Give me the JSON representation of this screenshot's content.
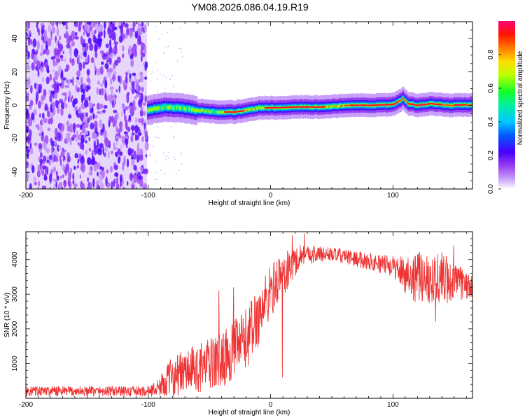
{
  "title": "YM08.2026.086.04.19.R19",
  "chart_data": [
    {
      "type": "heatmap",
      "xlabel": "Height of straight line (km)",
      "ylabel": "Frequency (Hz)",
      "xlim": [
        -200,
        165
      ],
      "ylim": [
        -50,
        50
      ],
      "x_ticks": [
        -200,
        -100,
        0,
        100
      ],
      "y_ticks": [
        -40,
        -20,
        0,
        20,
        40
      ],
      "noise_region_x": [
        -200,
        -101
      ],
      "signal_ridge": [
        {
          "x": -101,
          "f": -3
        },
        {
          "x": -95,
          "f": -2
        },
        {
          "x": -85,
          "f": -1
        },
        {
          "x": -75,
          "f": -1.5
        },
        {
          "x": -60,
          "f": -3
        },
        {
          "x": -45,
          "f": -4
        },
        {
          "x": -30,
          "f": -4
        },
        {
          "x": -20,
          "f": -3
        },
        {
          "x": -10,
          "f": -1.5
        },
        {
          "x": 0,
          "f": -1.5
        },
        {
          "x": 20,
          "f": -1
        },
        {
          "x": 40,
          "f": -1
        },
        {
          "x": 60,
          "f": 0
        },
        {
          "x": 80,
          "f": 0
        },
        {
          "x": 100,
          "f": 0.5
        },
        {
          "x": 108,
          "f": 4
        },
        {
          "x": 112,
          "f": 1
        },
        {
          "x": 120,
          "f": 0
        },
        {
          "x": 130,
          "f": 1
        },
        {
          "x": 145,
          "f": 0
        },
        {
          "x": 165,
          "f": 0.5
        }
      ],
      "colorbar": {
        "label": "Normalized spectral amplitude",
        "range": [
          0,
          1
        ],
        "ticks": [
          "0.0",
          "0.2",
          "0.4",
          "0.6",
          "0.8"
        ]
      }
    },
    {
      "type": "line",
      "xlabel": "Height of straight line (km)",
      "ylabel": "SNR (10 * v/v)",
      "xlim": [
        -200,
        165
      ],
      "ylim": [
        0,
        4800
      ],
      "x_ticks": [
        -200,
        -100,
        0,
        100
      ],
      "y_ticks": [
        1000,
        2000,
        3000,
        4000
      ],
      "color": "#ee3333",
      "envelope": [
        {
          "x": -200,
          "mean": 200,
          "amp": 150
        },
        {
          "x": -100,
          "mean": 200,
          "amp": 150
        },
        {
          "x": -92,
          "mean": 300,
          "amp": 250
        },
        {
          "x": -80,
          "mean": 650,
          "amp": 600
        },
        {
          "x": -60,
          "mean": 850,
          "amp": 700
        },
        {
          "x": -40,
          "mean": 1100,
          "amp": 800
        },
        {
          "x": -20,
          "mean": 1700,
          "amp": 900
        },
        {
          "x": -5,
          "mean": 2700,
          "amp": 900
        },
        {
          "x": 5,
          "mean": 3400,
          "amp": 700
        },
        {
          "x": 15,
          "mean": 3700,
          "amp": 600
        },
        {
          "x": 25,
          "mean": 4150,
          "amp": 300
        },
        {
          "x": 50,
          "mean": 4150,
          "amp": 200
        },
        {
          "x": 80,
          "mean": 3950,
          "amp": 250
        },
        {
          "x": 100,
          "mean": 3800,
          "amp": 300
        },
        {
          "x": 115,
          "mean": 3500,
          "amp": 700
        },
        {
          "x": 140,
          "mean": 3450,
          "amp": 800
        },
        {
          "x": 165,
          "mean": 3200,
          "amp": 300
        }
      ],
      "spikes": [
        {
          "x": 10,
          "y": 600
        },
        {
          "x": 18,
          "y": 4700
        },
        {
          "x": 28,
          "y": 4750
        },
        {
          "x": 37,
          "y": 3950
        },
        {
          "x": 135,
          "y": 2200
        },
        {
          "x": 150,
          "y": 4400
        },
        {
          "x": -42,
          "y": 3100
        },
        {
          "x": -30,
          "y": 3200
        }
      ]
    }
  ]
}
